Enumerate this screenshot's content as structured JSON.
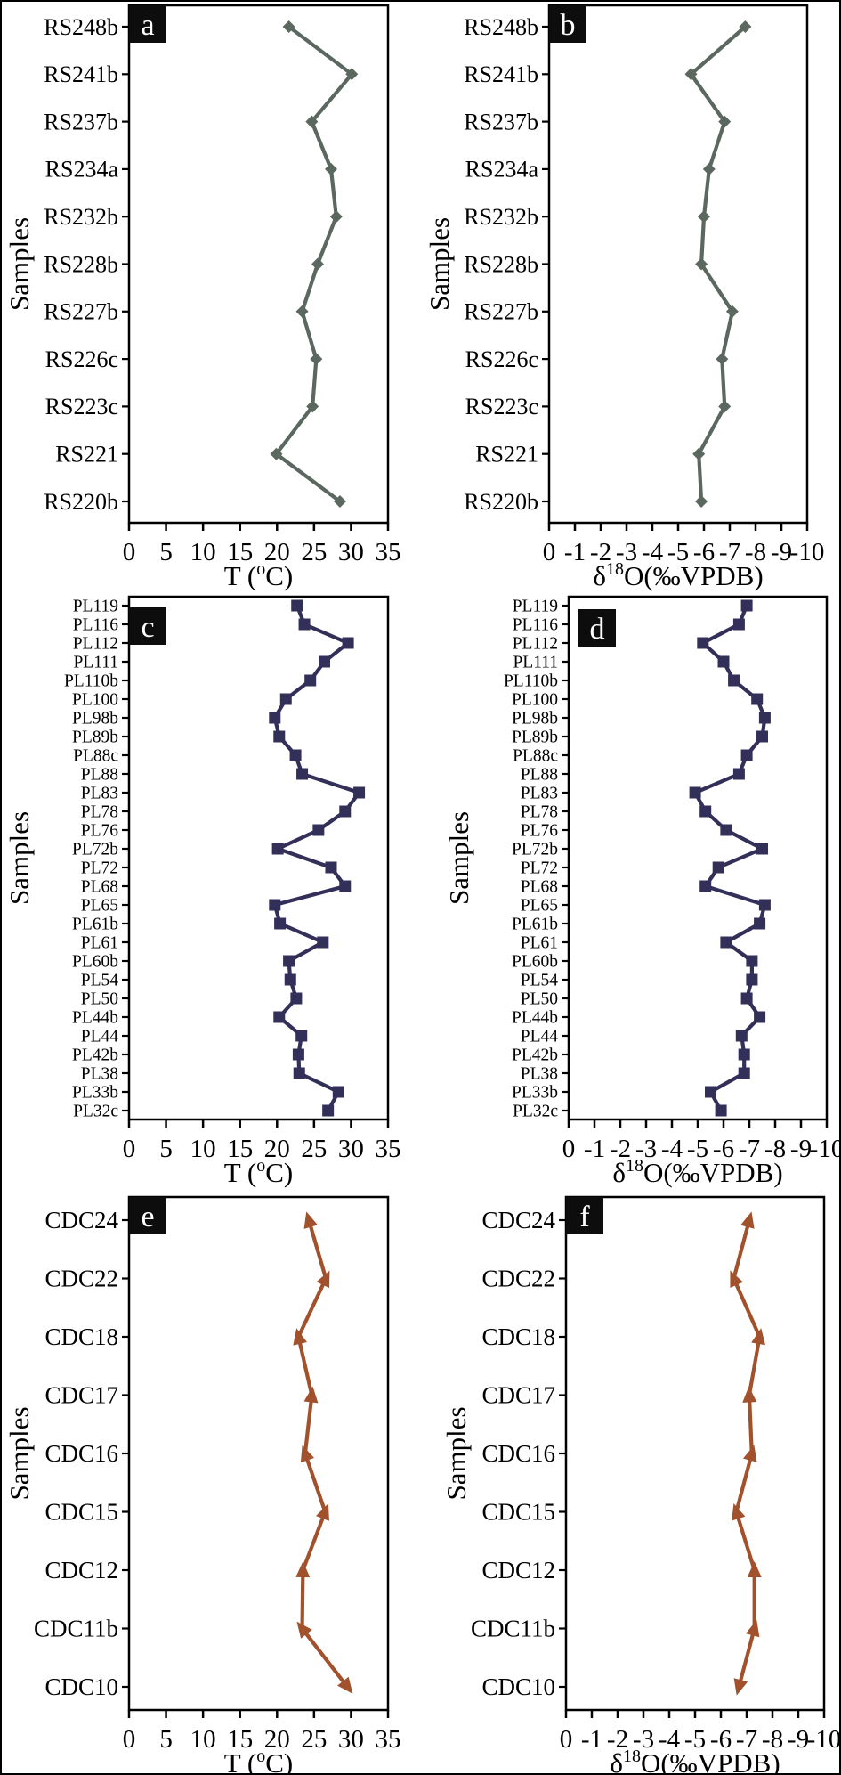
{
  "page": {
    "background": "#ffffff",
    "frame_color": "#000000",
    "panel_letter_bg": "#0d0d0d",
    "panel_letter_fg": "#ffffff"
  },
  "chart_data": [
    {
      "id": "a",
      "type": "line",
      "panel_label": "a",
      "samples_axis_title": "Samples",
      "x_axis_title_parts": {
        "pre": "T (",
        "sup": "o",
        "post": "C)"
      },
      "xlabel": "T (oC)",
      "ylabel": "Samples",
      "xlim": [
        0,
        35
      ],
      "xticks": [
        0,
        5,
        10,
        15,
        20,
        25,
        30,
        35
      ],
      "color": "#5b685f",
      "marker": "diamond",
      "legend": "none",
      "grid": false,
      "categories": [
        "RS248b",
        "RS241b",
        "RS237b",
        "RS234a",
        "RS232b",
        "RS228b",
        "RS227b",
        "RS226c",
        "RS223c",
        "RS221",
        "RS220b"
      ],
      "values": [
        21.6,
        30.1,
        24.7,
        27.3,
        28.0,
        25.5,
        23.4,
        25.3,
        24.8,
        19.9,
        28.5
      ]
    },
    {
      "id": "b",
      "type": "line",
      "panel_label": "b",
      "samples_axis_title": "Samples",
      "x_axis_title_parts": {
        "pre": "δ",
        "sup": "18",
        "post": "O(‰VPDB)"
      },
      "xlabel": "δ18O(‰VPDB)",
      "ylabel": "Samples",
      "xlim": [
        0,
        -10
      ],
      "xticks": [
        0,
        -1,
        -2,
        -3,
        -4,
        -5,
        -6,
        -7,
        -8,
        -9,
        -10
      ],
      "color": "#5b685f",
      "marker": "diamond",
      "legend": "none",
      "grid": false,
      "categories": [
        "RS248b",
        "RS241b",
        "RS237b",
        "RS234a",
        "RS232b",
        "RS228b",
        "RS227b",
        "RS226c",
        "RS223c",
        "RS221",
        "RS220b"
      ],
      "values": [
        -7.6,
        -5.5,
        -6.8,
        -6.2,
        -6.0,
        -5.9,
        -7.1,
        -6.7,
        -6.8,
        -5.8,
        -5.9
      ]
    },
    {
      "id": "c",
      "type": "line",
      "panel_label": "c",
      "samples_axis_title": "Samples",
      "x_axis_title_parts": {
        "pre": "T (",
        "sup": "o",
        "post": "C)"
      },
      "xlabel": "T (oC)",
      "ylabel": "Samples",
      "xlim": [
        0,
        35
      ],
      "xticks": [
        0,
        5,
        10,
        15,
        20,
        25,
        30,
        35
      ],
      "color": "#322f58",
      "marker": "square",
      "legend": "none",
      "grid": false,
      "categories": [
        "PL119",
        "PL116",
        "PL112",
        "PL111",
        "PL110b",
        "PL100",
        "PL98b",
        "PL89b",
        "PL88c",
        "PL88",
        "PL83",
        "PL78",
        "PL76",
        "PL72b",
        "PL72",
        "PL68",
        "PL65",
        "PL61b",
        "PL61",
        "PL60b",
        "PL54",
        "PL50",
        "PL44b",
        "PL44",
        "PL42b",
        "PL38",
        "PL33b",
        "PL32c"
      ],
      "values": [
        22.7,
        23.7,
        29.6,
        26.4,
        24.5,
        21.2,
        19.7,
        20.3,
        22.5,
        23.4,
        31.1,
        29.2,
        25.6,
        20.1,
        27.3,
        29.2,
        19.7,
        20.4,
        26.2,
        21.6,
        21.8,
        22.6,
        20.3,
        23.3,
        22.9,
        23.0,
        28.3,
        26.9
      ]
    },
    {
      "id": "d",
      "type": "line",
      "panel_label": "d",
      "samples_axis_title": "Samples",
      "x_axis_title_parts": {
        "pre": "δ",
        "sup": "18",
        "post": "O(‰VPDB)"
      },
      "xlabel": "δ18O(‰VPDB)",
      "ylabel": "Samples",
      "xlim": [
        0,
        -10
      ],
      "xticks": [
        0,
        -1,
        -2,
        -3,
        -4,
        -5,
        -6,
        -7,
        -8,
        -9,
        -10
      ],
      "color": "#322f58",
      "marker": "square",
      "legend": "none",
      "grid": false,
      "categories": [
        "PL119",
        "PL116",
        "PL112",
        "PL111",
        "PL110b",
        "PL100",
        "PL98b",
        "PL89b",
        "PL88c",
        "PL88",
        "PL83",
        "PL78",
        "PL76",
        "PL72b",
        "PL72",
        "PL68",
        "PL65",
        "PL61b",
        "PL61",
        "PL60b",
        "PL54",
        "PL50",
        "PL44b",
        "PL44",
        "PL42b",
        "PL38",
        "PL33b",
        "PL32c"
      ],
      "values": [
        -6.9,
        -6.6,
        -5.2,
        -6.0,
        -6.4,
        -7.3,
        -7.6,
        -7.5,
        -6.9,
        -6.6,
        -4.9,
        -5.3,
        -6.1,
        -7.5,
        -5.8,
        -5.3,
        -7.6,
        -7.4,
        -6.1,
        -7.1,
        -7.1,
        -6.9,
        -7.4,
        -6.7,
        -6.8,
        -6.8,
        -5.5,
        -5.9
      ]
    },
    {
      "id": "e",
      "type": "line",
      "panel_label": "e",
      "samples_axis_title": "Samples",
      "x_axis_title_parts": {
        "pre": "T (",
        "sup": "o",
        "post": "C)"
      },
      "xlabel": "T (oC)",
      "ylabel": "Samples",
      "xlim": [
        0,
        35
      ],
      "xticks": [
        0,
        5,
        10,
        15,
        20,
        25,
        30,
        35
      ],
      "color": "#a2512d",
      "marker": "triangle",
      "legend": "none",
      "grid": false,
      "categories": [
        "CDC24",
        "CDC22",
        "CDC18",
        "CDC17",
        "CDC16",
        "CDC15",
        "CDC12",
        "CDC11b",
        "CDC10"
      ],
      "values": [
        24.3,
        26.6,
        22.9,
        24.7,
        23.8,
        26.5,
        23.5,
        23.4,
        29.5
      ]
    },
    {
      "id": "f",
      "type": "line",
      "panel_label": "f",
      "samples_axis_title": "Samples",
      "x_axis_title_parts": {
        "pre": "δ",
        "sup": "18",
        "post": "O(‰VPDB)"
      },
      "xlabel": "δ18O(‰VPDB)",
      "ylabel": "Samples",
      "xlim": [
        0,
        -10
      ],
      "xticks": [
        0,
        -1,
        -2,
        -3,
        -4,
        -5,
        -6,
        -7,
        -8,
        -9,
        -10
      ],
      "color": "#a2512d",
      "marker": "triangle",
      "legend": "none",
      "grid": false,
      "categories": [
        "CDC24",
        "CDC22",
        "CDC18",
        "CDC17",
        "CDC16",
        "CDC15",
        "CDC12",
        "CDC11b",
        "CDC10"
      ],
      "values": [
        -7.1,
        -6.5,
        -7.5,
        -7.1,
        -7.2,
        -6.6,
        -7.3,
        -7.3,
        -6.7
      ]
    }
  ]
}
